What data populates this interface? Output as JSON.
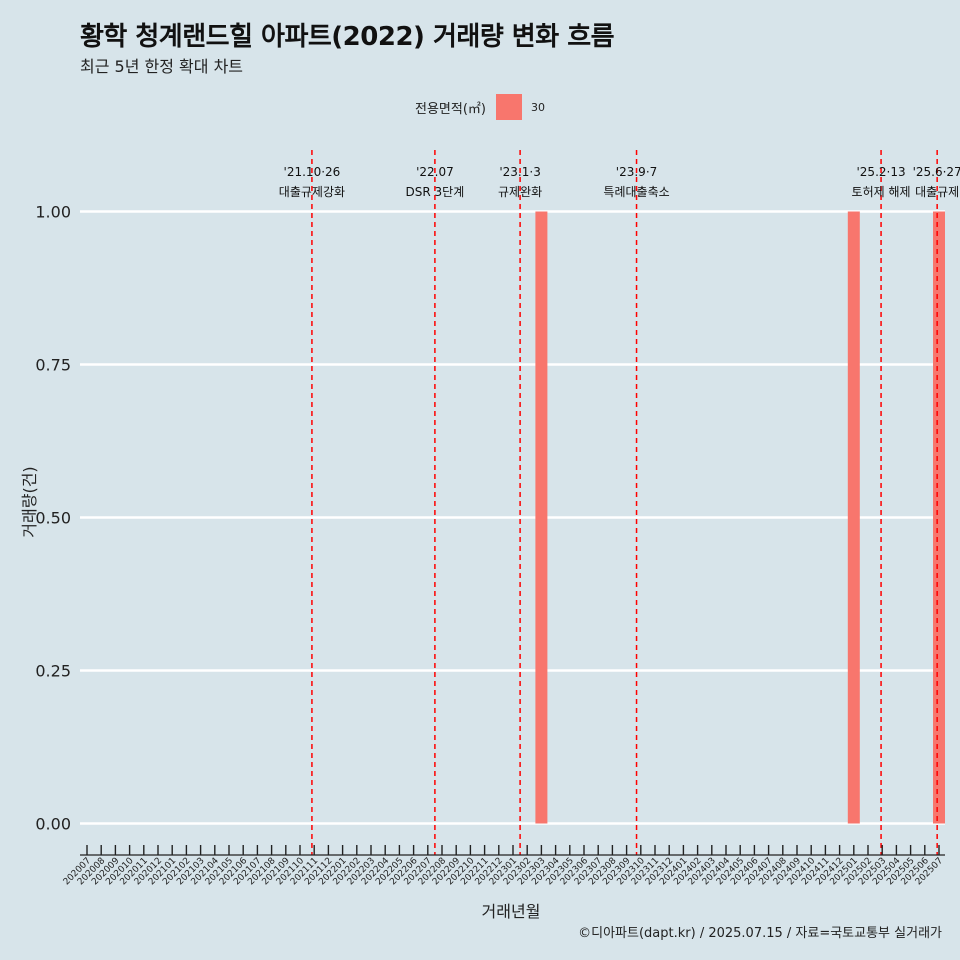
{
  "title": "황학 청계랜드힐 아파트(2022) 거래량 변화 흐름",
  "subtitle": "최근 5년 한정 확대 차트",
  "caption": "©디아파트(dapt.kr) / 2025.07.15 / 자료=국토교통부 실거래가",
  "legend": {
    "title": "전용면적(㎡)",
    "items": [
      {
        "label": "30",
        "color": "#f8766d"
      }
    ]
  },
  "chart_data": {
    "type": "bar",
    "xlabel": "거래년월",
    "ylabel": "거래량(건)",
    "ylim": [
      0,
      1
    ],
    "yticks": [
      "0.00",
      "0.25",
      "0.50",
      "0.75",
      "1.00"
    ],
    "categories": [
      "202007",
      "202008",
      "202009",
      "202010",
      "202011",
      "202012",
      "202101",
      "202102",
      "202103",
      "202104",
      "202105",
      "202106",
      "202107",
      "202108",
      "202109",
      "202110",
      "202111",
      "202112",
      "202201",
      "202202",
      "202203",
      "202204",
      "202205",
      "202206",
      "202207",
      "202208",
      "202209",
      "202210",
      "202211",
      "202212",
      "202301",
      "202302",
      "202303",
      "202304",
      "202305",
      "202306",
      "202307",
      "202308",
      "202309",
      "202310",
      "202311",
      "202312",
      "202401",
      "202402",
      "202403",
      "202404",
      "202405",
      "202406",
      "202407",
      "202408",
      "202409",
      "202410",
      "202411",
      "202412",
      "202501",
      "202502",
      "202503",
      "202504",
      "202505",
      "202506",
      "202507"
    ],
    "series": [
      {
        "name": "30",
        "color": "#f8766d",
        "values": [
          0,
          0,
          0,
          0,
          0,
          0,
          0,
          0,
          0,
          0,
          0,
          0,
          0,
          0,
          0,
          0,
          0,
          0,
          0,
          0,
          0,
          0,
          0,
          0,
          0,
          0,
          0,
          0,
          0,
          0,
          0,
          0,
          1,
          0,
          0,
          0,
          0,
          0,
          0,
          0,
          0,
          0,
          0,
          0,
          0,
          0,
          0,
          0,
          0,
          0,
          0,
          0,
          0,
          0,
          1,
          0,
          0,
          0,
          0,
          0,
          1
        ]
      }
    ],
    "events": [
      {
        "date": "2021-10-26",
        "x": 15.84,
        "line1": "'21.10·26",
        "line2": "대출규제강화"
      },
      {
        "date": "2022-07-01",
        "x": 24.5,
        "line1": "'22.07",
        "line2": "DSR 3단계"
      },
      {
        "date": "2023-01-03",
        "x": 30.5,
        "line1": "'23.1·3",
        "line2": "규제완화"
      },
      {
        "date": "2023-09-07",
        "x": 38.7,
        "line1": "'23.9·7",
        "line2": "특례대출축소"
      },
      {
        "date": "2025-02-13",
        "x": 55.92,
        "line1": "'25.2·13",
        "line2": "토허제 해제"
      },
      {
        "date": "2025-06-27",
        "x": 59.87,
        "line1": "'25.6·27",
        "line2": "대출규제"
      }
    ],
    "grid": true,
    "legend_position": "top"
  }
}
